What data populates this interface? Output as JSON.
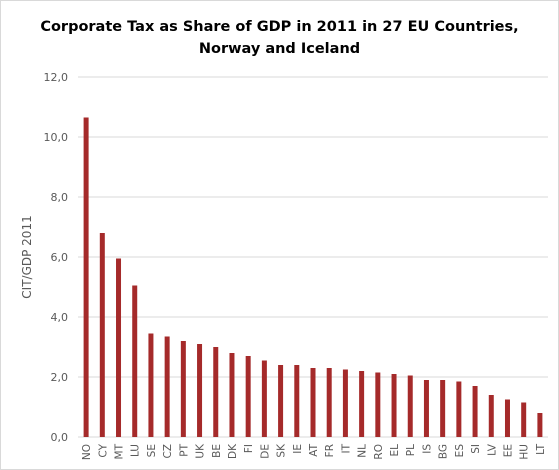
{
  "chart_data": {
    "type": "bar",
    "title_lines": [
      "Corporate Tax as Share of GDP in 2011 in 27 EU Countries,",
      "Norway and Iceland"
    ],
    "xlabel": "",
    "ylabel": "CIT/GDP 2011",
    "ylim": [
      0,
      12
    ],
    "yticks": [
      0,
      2,
      4,
      6,
      8,
      10,
      12
    ],
    "ytick_labels": [
      "0,0",
      "2,0",
      "4,0",
      "6,0",
      "8,0",
      "10,0",
      "12,0"
    ],
    "grid": true,
    "legend": "none",
    "bar_color": "#a52a2a",
    "grid_color": "#d9d9d9",
    "categories": [
      "NO",
      "CY",
      "MT",
      "LU",
      "SE",
      "CZ",
      "PT",
      "UK",
      "BE",
      "DK",
      "FI",
      "DE",
      "SK",
      "IE",
      "AT",
      "FR",
      "IT",
      "NL",
      "RO",
      "EL",
      "PL",
      "IS",
      "BG",
      "ES",
      "SI",
      "LV",
      "EE",
      "HU",
      "LT"
    ],
    "values": [
      10.65,
      6.8,
      5.95,
      5.05,
      3.45,
      3.35,
      3.2,
      3.1,
      3.0,
      2.8,
      2.7,
      2.55,
      2.4,
      2.4,
      2.3,
      2.3,
      2.25,
      2.2,
      2.15,
      2.1,
      2.05,
      1.9,
      1.9,
      1.85,
      1.7,
      1.4,
      1.25,
      1.15,
      0.8
    ]
  }
}
